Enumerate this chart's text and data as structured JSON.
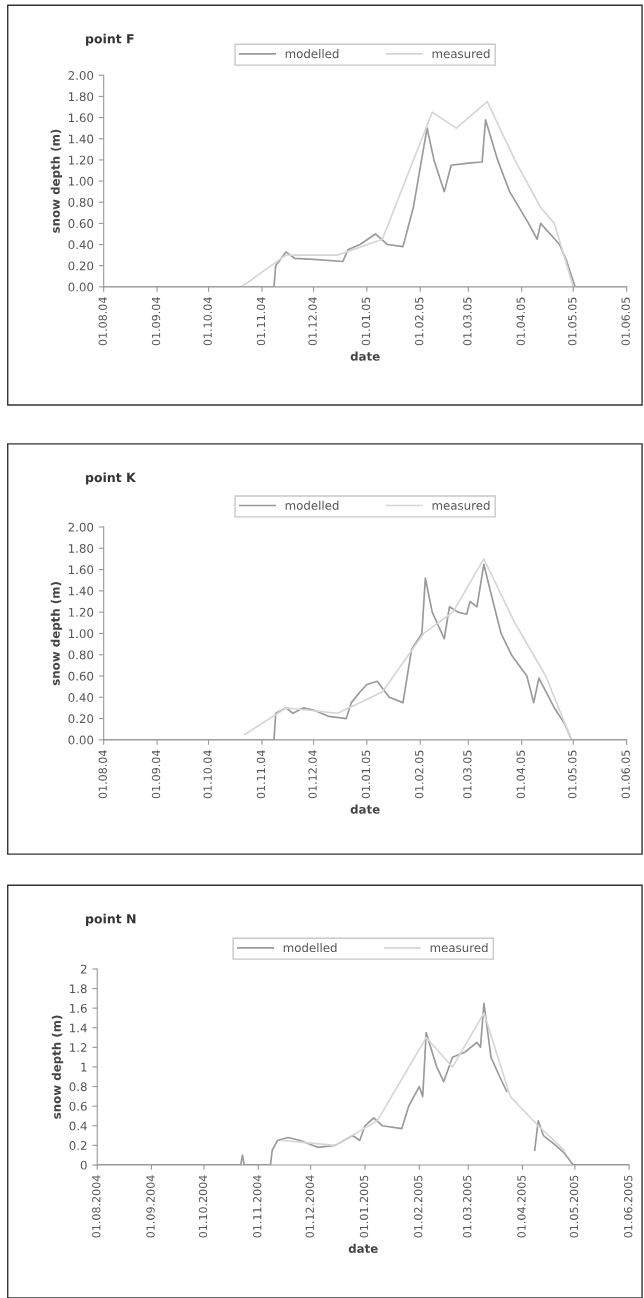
{
  "chart_data": [
    {
      "type": "line",
      "title": "point F",
      "xlabel": "date",
      "ylabel": "snow depth (m)",
      "legend": "top",
      "grid": false,
      "marker": "none",
      "line_style": "solid",
      "xlim": [
        "2004-08-01",
        "2005-06-01"
      ],
      "xticks": [
        {
          "value": "2004-08-01",
          "label": "01.08.04"
        },
        {
          "value": "2004-09-01",
          "label": "01.09.04"
        },
        {
          "value": "2004-10-01",
          "label": "01.10.04"
        },
        {
          "value": "2004-11-01",
          "label": "01.11.04"
        },
        {
          "value": "2004-12-01",
          "label": "01.12.04"
        },
        {
          "value": "2005-01-01",
          "label": "01.01.05"
        },
        {
          "value": "2005-02-01",
          "label": "01.02.05"
        },
        {
          "value": "2005-03-01",
          "label": "01.03.05"
        },
        {
          "value": "2005-04-01",
          "label": "01.04.05"
        },
        {
          "value": "2005-05-01",
          "label": "01.05.05"
        },
        {
          "value": "2005-06-01",
          "label": "01.06.05"
        }
      ],
      "ylim": [
        0,
        2
      ],
      "yticks": [
        {
          "value": 0,
          "label": "0.00"
        },
        {
          "value": 0.2,
          "label": "0.20"
        },
        {
          "value": 0.4,
          "label": "0.40"
        },
        {
          "value": 0.6,
          "label": "0.60"
        },
        {
          "value": 0.8,
          "label": "0.80"
        },
        {
          "value": 1,
          "label": "1.00"
        },
        {
          "value": 1.2,
          "label": "1.20"
        },
        {
          "value": 1.4,
          "label": "1.40"
        },
        {
          "value": 1.6,
          "label": "1.60"
        },
        {
          "value": 1.8,
          "label": "1.80"
        },
        {
          "value": 2,
          "label": "2.00"
        }
      ],
      "series": [
        {
          "name": "modelled",
          "color": "#9a9a9a",
          "x": [
            "2004-08-01",
            "2004-11-08",
            "2004-11-09",
            "2004-11-15",
            "2004-11-20",
            "2004-12-01",
            "2004-12-18",
            "2004-12-21",
            "2004-12-28",
            "2005-01-06",
            "2005-01-13",
            "2005-01-22",
            "2005-01-28",
            "2005-02-05",
            "2005-02-09",
            "2005-02-15",
            "2005-02-19",
            "2005-03-01",
            "2005-03-09",
            "2005-03-11",
            "2005-03-18",
            "2005-03-25",
            "2005-04-05",
            "2005-04-10",
            "2005-04-12",
            "2005-04-23",
            "2005-04-27",
            "2005-05-02",
            "2005-06-01"
          ],
          "values": [
            0,
            0,
            0.2,
            0.33,
            0.27,
            0.26,
            0.24,
            0.35,
            0.4,
            0.5,
            0.4,
            0.38,
            0.75,
            1.5,
            1.2,
            0.9,
            1.15,
            1.17,
            1.18,
            1.58,
            1.2,
            0.9,
            0.6,
            0.45,
            0.6,
            0.4,
            0.25,
            0,
            0
          ]
        },
        {
          "name": "measured",
          "color": "#d6d6d6",
          "x": [
            "2004-10-20",
            "2004-11-15",
            "2004-12-15",
            "2005-01-10",
            "2005-02-08",
            "2005-02-22",
            "2005-03-12",
            "2005-03-28",
            "2005-04-12",
            "2005-04-20",
            "2005-05-01"
          ],
          "values": [
            0,
            0.3,
            0.3,
            0.45,
            1.65,
            1.5,
            1.75,
            1.2,
            0.75,
            0.6,
            0
          ]
        }
      ]
    },
    {
      "type": "line",
      "title": "point K",
      "xlabel": "date",
      "ylabel": "snow depth (m)",
      "legend": "top",
      "grid": false,
      "marker": "none",
      "line_style": "solid",
      "xlim": [
        "2004-08-01",
        "2005-06-01"
      ],
      "xticks": [
        {
          "value": "2004-08-01",
          "label": "01.08.04"
        },
        {
          "value": "2004-09-01",
          "label": "01.09.04"
        },
        {
          "value": "2004-10-01",
          "label": "01.10.04"
        },
        {
          "value": "2004-11-01",
          "label": "01.11.04"
        },
        {
          "value": "2004-12-01",
          "label": "01.12.04"
        },
        {
          "value": "2005-01-01",
          "label": "01.01.05"
        },
        {
          "value": "2005-02-01",
          "label": "01.02.05"
        },
        {
          "value": "2005-03-01",
          "label": "01.03.05"
        },
        {
          "value": "2005-04-01",
          "label": "01.04.05"
        },
        {
          "value": "2005-05-01",
          "label": "01.05.05"
        },
        {
          "value": "2005-06-01",
          "label": "01.06.05"
        }
      ],
      "ylim": [
        0,
        2
      ],
      "yticks": [
        {
          "value": 0,
          "label": "0.00"
        },
        {
          "value": 0.2,
          "label": "0.20"
        },
        {
          "value": 0.4,
          "label": "0.40"
        },
        {
          "value": 0.6,
          "label": "0.60"
        },
        {
          "value": 0.8,
          "label": "0.80"
        },
        {
          "value": 1,
          "label": "1.00"
        },
        {
          "value": 1.2,
          "label": "1.20"
        },
        {
          "value": 1.4,
          "label": "1.40"
        },
        {
          "value": 1.6,
          "label": "1.60"
        },
        {
          "value": 1.8,
          "label": "1.80"
        },
        {
          "value": 2,
          "label": "2.00"
        }
      ],
      "series": [
        {
          "name": "modelled",
          "color": "#9a9a9a",
          "x": [
            "2004-08-01",
            "2004-11-08",
            "2004-11-09",
            "2004-11-15",
            "2004-11-19",
            "2004-11-25",
            "2004-12-01",
            "2004-12-10",
            "2004-12-20",
            "2004-12-23",
            "2004-12-28",
            "2005-01-01",
            "2005-01-07",
            "2005-01-14",
            "2005-01-22",
            "2005-01-27",
            "2005-02-02",
            "2005-02-04",
            "2005-02-08",
            "2005-02-15",
            "2005-02-18",
            "2005-02-23",
            "2005-02-28",
            "2005-03-02",
            "2005-03-06",
            "2005-03-10",
            "2005-03-13",
            "2005-03-20",
            "2005-03-26",
            "2005-04-04",
            "2005-04-08",
            "2005-04-11",
            "2005-04-20",
            "2005-04-26",
            "2005-04-30",
            "2005-06-01"
          ],
          "values": [
            0,
            0,
            0.25,
            0.3,
            0.25,
            0.3,
            0.28,
            0.22,
            0.2,
            0.35,
            0.45,
            0.52,
            0.55,
            0.4,
            0.35,
            0.85,
            1.0,
            1.52,
            1.2,
            0.95,
            1.25,
            1.2,
            1.18,
            1.3,
            1.25,
            1.65,
            1.45,
            1.0,
            0.8,
            0.6,
            0.35,
            0.58,
            0.3,
            0.15,
            0,
            0
          ]
        },
        {
          "name": "measured",
          "color": "#d6d6d6",
          "x": [
            "2004-10-22",
            "2004-11-15",
            "2004-12-15",
            "2005-01-10",
            "2005-02-03",
            "2005-02-20",
            "2005-03-10",
            "2005-03-28",
            "2005-04-15",
            "2005-04-30"
          ],
          "values": [
            0.05,
            0.3,
            0.25,
            0.45,
            1.0,
            1.2,
            1.7,
            1.1,
            0.6,
            0
          ]
        }
      ]
    },
    {
      "type": "line",
      "title": "point N",
      "xlabel": "date",
      "ylabel": "snow depth (m)",
      "legend": "top",
      "grid": false,
      "marker": "none",
      "line_style": "solid",
      "xlim": [
        "2004-08-01",
        "2005-06-01"
      ],
      "xticks": [
        {
          "value": "2004-08-01",
          "label": "01.08.2004"
        },
        {
          "value": "2004-09-01",
          "label": "01.09.2004"
        },
        {
          "value": "2004-10-01",
          "label": "01.10.2004"
        },
        {
          "value": "2004-11-01",
          "label": "01.11.2004"
        },
        {
          "value": "2004-12-01",
          "label": "01.12.2004"
        },
        {
          "value": "2005-01-01",
          "label": "01.01.2005"
        },
        {
          "value": "2005-02-01",
          "label": "01.02.2005"
        },
        {
          "value": "2005-03-01",
          "label": "01.03.2005"
        },
        {
          "value": "2005-04-01",
          "label": "01.04.2005"
        },
        {
          "value": "2005-05-01",
          "label": "01.05.2005"
        },
        {
          "value": "2005-06-01",
          "label": "01.06.2005"
        }
      ],
      "ylim": [
        0,
        2
      ],
      "yticks": [
        0,
        0.2,
        0.4,
        0.6,
        0.8,
        1,
        1.2,
        1.4,
        1.6,
        1.8,
        2
      ],
      "series": [
        {
          "name": "modelled",
          "color": "#9a9a9a",
          "x": [
            "2004-08-01",
            "2004-10-22",
            "2004-10-23",
            "2004-10-24",
            "2004-11-08",
            "2004-11-09",
            "2004-11-12",
            "2004-11-18",
            "2004-11-25",
            "2004-12-05",
            "2004-12-15",
            "2004-12-25",
            "2004-12-29",
            "2005-01-01",
            "2005-01-06",
            "2005-01-11",
            "2005-01-22",
            "2005-01-26",
            "2005-02-01",
            "2005-02-03",
            "2005-02-05",
            "2005-02-11",
            "2005-02-15",
            "2005-02-20",
            "2005-02-27",
            "2005-03-06",
            "2005-03-08",
            "2005-03-10",
            "2005-03-14",
            "2005-03-19",
            "2005-03-23",
            "2005-03-24",
            "2005-04-08",
            "2005-04-10",
            "2005-04-13",
            "2005-04-20",
            "2005-04-25",
            "2005-04-30",
            "2005-06-01"
          ],
          "values": [
            0,
            0,
            0.1,
            0,
            0,
            0.15,
            0.25,
            0.28,
            0.25,
            0.18,
            0.2,
            0.3,
            0.25,
            0.4,
            0.48,
            0.4,
            0.37,
            0.6,
            0.8,
            0.7,
            1.35,
            1.0,
            0.85,
            1.1,
            1.15,
            1.25,
            1.2,
            1.65,
            1.1,
            0.9,
            0.75,
            null,
            0.15,
            0.45,
            0.3,
            0.2,
            0.12,
            0,
            0
          ]
        },
        {
          "name": "measured",
          "color": "#d6d6d6",
          "x": [
            "2004-11-15",
            "2004-12-15",
            "2005-01-08",
            "2005-02-05",
            "2005-02-20",
            "2005-03-10",
            "2005-03-25",
            "2005-04-10",
            "2005-04-25"
          ],
          "values": [
            0.25,
            0.2,
            0.45,
            1.3,
            1.0,
            1.55,
            0.7,
            0.4,
            0.15
          ]
        }
      ]
    }
  ]
}
